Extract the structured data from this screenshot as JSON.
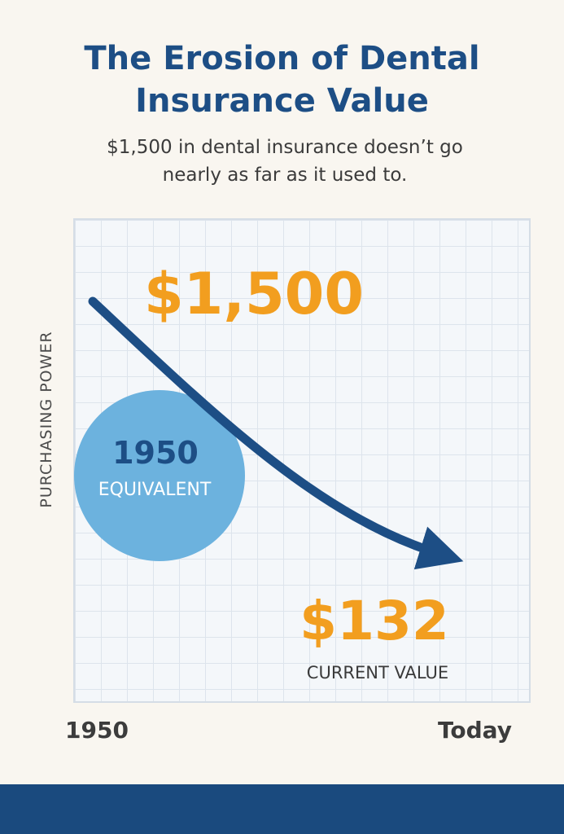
{
  "title": "The Erosion of Dental Insurance Value",
  "subtitle": "$1,500 in dental insurance doesn’t go nearly as far as it used to.",
  "colors": {
    "title": "#1d4e85",
    "arrow": "#1d4e85",
    "value": "#f29e1f",
    "bubble": "#6cb2de",
    "bubble_text": "#1d4e85",
    "footer": "#1a4a7e"
  },
  "chart_data": {
    "type": "line",
    "title": "The Erosion of Dental Insurance Value",
    "subtitle": "$1,500 in dental insurance doesn’t go nearly as far as it used to.",
    "xlabel": "",
    "ylabel": "PURCHASING POWER",
    "x_ticks": [
      "1950",
      "Today"
    ],
    "grid": true,
    "series": [
      {
        "x": [
          "1950",
          "Today"
        ],
        "values": [
          1500,
          132
        ]
      }
    ],
    "annotations": {
      "start_value": "$1,500",
      "end_value": "$132",
      "end_label": "CURRENT VALUE",
      "bubble_year": "1950",
      "bubble_label": "EQUIVALENT"
    }
  }
}
